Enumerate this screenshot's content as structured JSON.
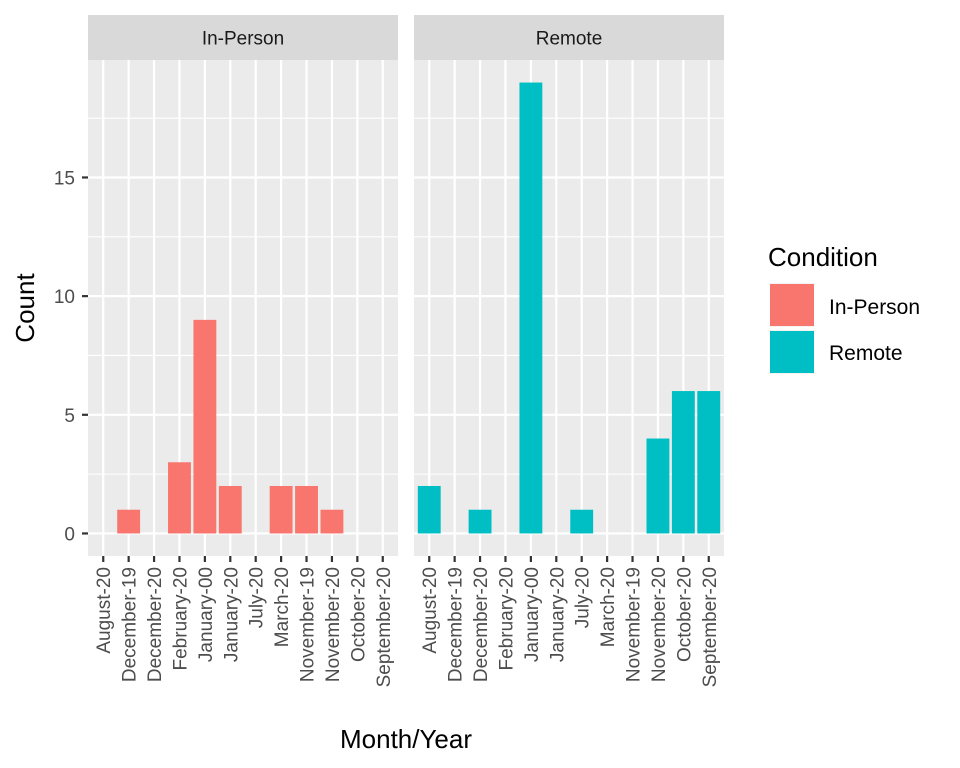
{
  "chart_data": {
    "type": "bar",
    "title": "",
    "xlabel": "Month/Year",
    "ylabel": "Count",
    "ylim": [
      -0.95,
      19.95
    ],
    "yticks": [
      0,
      5,
      10,
      15
    ],
    "grid": true,
    "legend": {
      "title": "Condition",
      "placement": "right",
      "entries": [
        {
          "label": "In-Person",
          "color": "#F8766D"
        },
        {
          "label": "Remote",
          "color": "#00BFC4"
        }
      ]
    },
    "facets": [
      {
        "label": "In-Person",
        "color": "#F8766D",
        "categories": [
          "August-20",
          "December-19",
          "December-20",
          "February-20",
          "January-00",
          "January-20",
          "July-20",
          "March-20",
          "November-19",
          "November-20",
          "October-20",
          "September-20"
        ],
        "values": [
          0,
          1,
          0,
          3,
          9,
          2,
          0,
          2,
          2,
          1,
          0,
          0
        ]
      },
      {
        "label": "Remote",
        "color": "#00BFC4",
        "categories": [
          "August-20",
          "December-19",
          "December-20",
          "February-20",
          "January-00",
          "January-20",
          "July-20",
          "March-20",
          "November-19",
          "November-20",
          "October-20",
          "September-20"
        ],
        "values": [
          2,
          0,
          1,
          0,
          19,
          0,
          1,
          0,
          0,
          4,
          6,
          6
        ]
      }
    ]
  }
}
